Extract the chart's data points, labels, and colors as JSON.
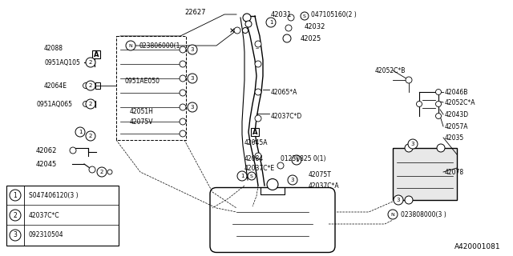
{
  "bg_color": "#ffffff",
  "diagram_code": "A420001081",
  "legend": [
    {
      "num": "1",
      "text": "S047406120(3 )"
    },
    {
      "num": "2",
      "text": "42037C*C"
    },
    {
      "num": "3",
      "text": "092310504"
    }
  ]
}
